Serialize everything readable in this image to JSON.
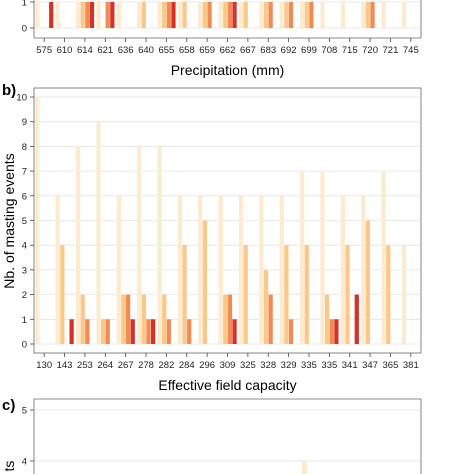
{
  "chart_data": [
    {
      "panel": "a",
      "type": "bar",
      "xlabel": "Precipitation (mm)",
      "categories": [
        "575",
        "610",
        "614",
        "621",
        "636",
        "640",
        "655",
        "658",
        "659",
        "662",
        "667",
        "683",
        "692",
        "699",
        "708",
        "715",
        "720",
        "721",
        "745"
      ],
      "series_colors": [
        "#fdebd0",
        "#fbc88a",
        "#f38a53",
        "#d73027"
      ],
      "series": [
        {
          "values": [
            1,
            1,
            1,
            1,
            1,
            1,
            1,
            1,
            1,
            1,
            1,
            1,
            1,
            1,
            1,
            1,
            1,
            1,
            1
          ]
        },
        {
          "values": [
            0,
            0,
            1,
            0,
            0,
            1,
            1,
            1,
            1,
            1,
            1,
            1,
            1,
            1,
            0,
            0,
            1,
            0,
            0
          ]
        },
        {
          "values": [
            0,
            0,
            1,
            1,
            0,
            0,
            1,
            0,
            1,
            1,
            0,
            1,
            1,
            1,
            0,
            0,
            1,
            0,
            0
          ]
        },
        {
          "values": [
            1,
            0,
            1,
            1,
            0,
            0,
            1,
            0,
            0,
            1,
            0,
            0,
            0,
            0,
            0,
            0,
            0,
            0,
            0
          ]
        }
      ],
      "yticks": [
        0,
        1
      ],
      "grid": true
    },
    {
      "panel": "b",
      "type": "bar",
      "title": "b)",
      "xlabel": "Effective field capacity",
      "ylabel": "Nb. of masting events",
      "categories": [
        "130",
        "143",
        "253",
        "264",
        "267",
        "278",
        "282",
        "284",
        "296",
        "309",
        "325",
        "328",
        "329",
        "335",
        "335",
        "341",
        "347",
        "365",
        "381"
      ],
      "series_colors": [
        "#fdebd0",
        "#fbc88a",
        "#f38a53",
        "#d73027"
      ],
      "series": [
        {
          "values": [
            10,
            6,
            8,
            9,
            6,
            8,
            8,
            6,
            6,
            6,
            6,
            6,
            6,
            7,
            7,
            6,
            6,
            7,
            4
          ]
        },
        {
          "values": [
            0,
            4,
            2,
            1,
            2,
            2,
            2,
            4,
            5,
            2,
            4,
            3,
            4,
            4,
            2,
            4,
            5,
            4,
            0
          ]
        },
        {
          "values": [
            0,
            0,
            1,
            1,
            2,
            1,
            1,
            1,
            0,
            2,
            0,
            2,
            1,
            0,
            1,
            0,
            0,
            0,
            0
          ]
        },
        {
          "values": [
            0,
            1,
            0,
            0,
            1,
            1,
            0,
            0,
            0,
            1,
            0,
            0,
            0,
            0,
            1,
            2,
            0,
            0,
            0
          ]
        }
      ],
      "ylim": [
        0,
        10
      ],
      "yticks": [
        0,
        1,
        2,
        3,
        4,
        5,
        6,
        7,
        8,
        9,
        10
      ],
      "grid": true
    },
    {
      "panel": "c",
      "type": "bar",
      "title": "c)",
      "ylabel_fragment": "ts",
      "yticks": [
        4,
        5
      ],
      "series_colors": [
        "#fdebd0"
      ],
      "grid": true
    }
  ]
}
